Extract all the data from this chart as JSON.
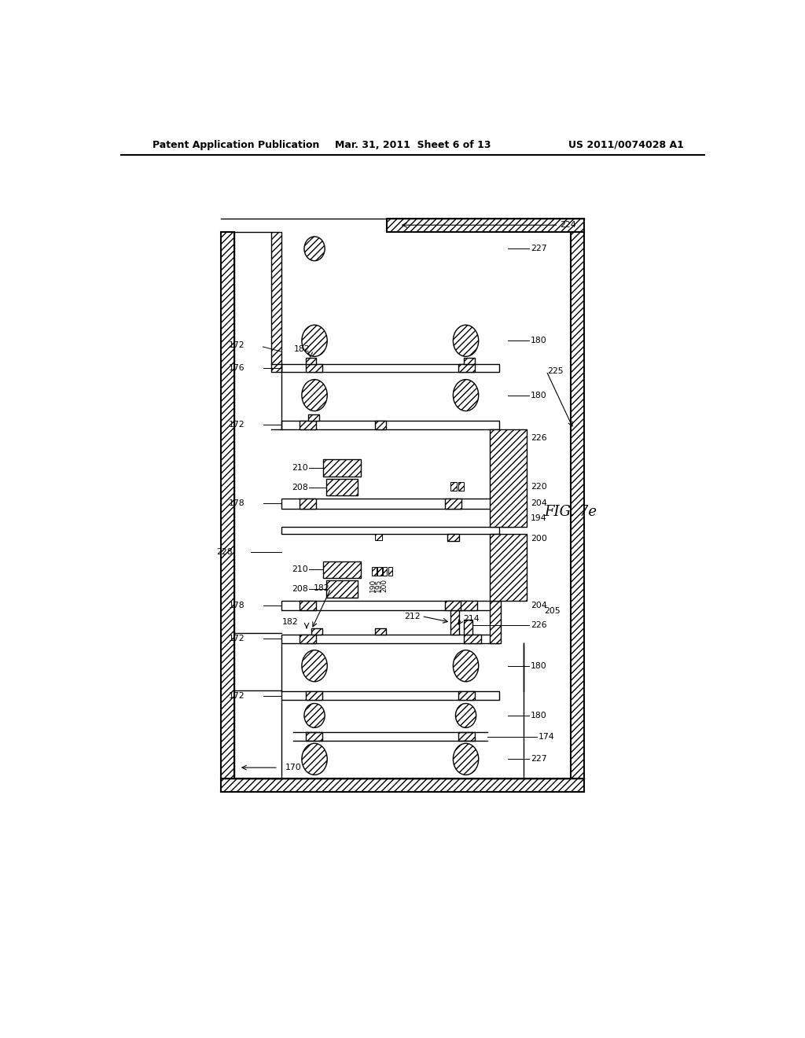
{
  "bg_color": "#ffffff",
  "fig_width": 10.24,
  "fig_height": 13.2,
  "header_left": "Patent Application Publication",
  "header_mid": "Mar. 31, 2011  Sheet 6 of 13",
  "header_right": "US 2011/0074028 A1",
  "fig_label": "FIG. 7e"
}
